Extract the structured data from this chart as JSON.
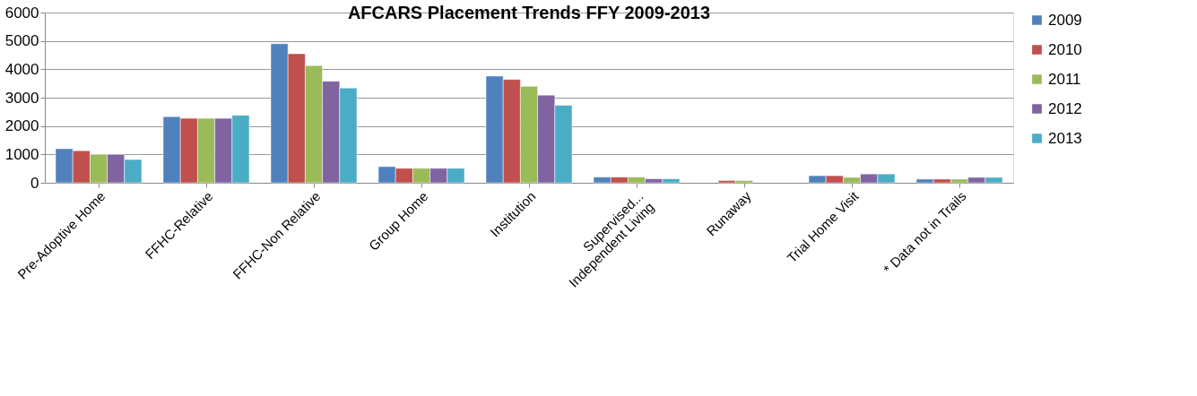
{
  "chart_data": {
    "type": "bar",
    "title": "AFCARS Placement Trends FFY 2009-2013",
    "categories": [
      "Pre-Adoptive Home",
      "FFHC-Relative",
      "FFHC-Non Relative",
      "Group Home",
      "Institution",
      "Supervised... Independent Living",
      "Runaway",
      "Trial Home Visit",
      "* Data not in Trails"
    ],
    "series": [
      {
        "name": "2009",
        "color": "#4f81bd",
        "values": [
          1200,
          2330,
          4900,
          570,
          3760,
          200,
          null,
          250,
          130
        ]
      },
      {
        "name": "2010",
        "color": "#c0504d",
        "values": [
          1130,
          2270,
          4550,
          510,
          3640,
          200,
          80,
          250,
          130
        ]
      },
      {
        "name": "2011",
        "color": "#9bbb59",
        "values": [
          1000,
          2270,
          4130,
          510,
          3400,
          200,
          80,
          190,
          130
        ]
      },
      {
        "name": "2012",
        "color": "#8064a2",
        "values": [
          1000,
          2270,
          3580,
          510,
          3090,
          140,
          null,
          310,
          190
        ]
      },
      {
        "name": "2013",
        "color": "#4bacc6",
        "values": [
          820,
          2380,
          3340,
          510,
          2730,
          140,
          null,
          310,
          190
        ]
      }
    ],
    "ylim": [
      0,
      6000
    ],
    "yticks": [
      0,
      1000,
      2000,
      3000,
      4000,
      5000,
      6000
    ],
    "grid": "y",
    "legend": "right"
  }
}
